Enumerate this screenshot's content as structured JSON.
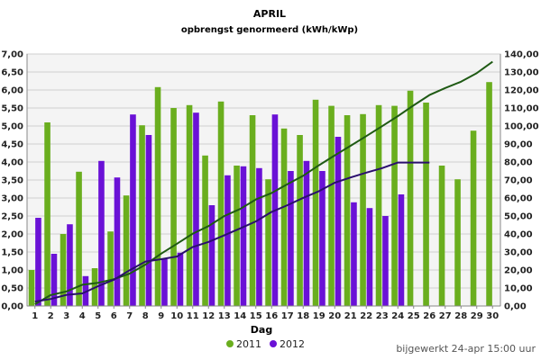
{
  "chart_data": {
    "type": "bar",
    "title": "APRIL",
    "subtitle": "opbrengst genormeerd (kWh/kWp)",
    "xlabel": "Dag",
    "ylabel": "",
    "ylim": [
      0,
      7
    ],
    "y2lim": [
      0,
      140
    ],
    "yticks": [
      "0,00",
      "0,50",
      "1,00",
      "1,50",
      "2,00",
      "2,50",
      "3,00",
      "3,50",
      "4,00",
      "4,50",
      "5,00",
      "5,50",
      "6,00",
      "6,50",
      "7,00"
    ],
    "y2ticks": [
      "0,00",
      "10,00",
      "20,00",
      "30,00",
      "40,00",
      "50,00",
      "60,00",
      "70,00",
      "80,00",
      "90,00",
      "100,00",
      "110,00",
      "120,00",
      "130,00",
      "140,00"
    ],
    "categories": [
      "1",
      "2",
      "3",
      "4",
      "5",
      "6",
      "7",
      "8",
      "9",
      "10",
      "11",
      "12",
      "13",
      "14",
      "15",
      "16",
      "17",
      "18",
      "19",
      "20",
      "21",
      "22",
      "23",
      "24",
      "25",
      "26",
      "27",
      "28",
      "29",
      "30"
    ],
    "series": [
      {
        "name": "2011",
        "type": "bar",
        "axis": "left",
        "color": "#6aae1e",
        "values": [
          1.0,
          5.1,
          2.0,
          3.73,
          1.05,
          2.07,
          3.07,
          5.02,
          6.08,
          5.5,
          5.58,
          4.18,
          5.68,
          3.9,
          5.3,
          3.52,
          4.93,
          4.75,
          5.73,
          5.56,
          5.3,
          5.33,
          5.58,
          5.56,
          5.98,
          5.65,
          3.9,
          3.52,
          4.87,
          6.22
        ]
      },
      {
        "name": "2012",
        "type": "bar",
        "axis": "left",
        "color": "#6a11d6",
        "values": [
          2.45,
          1.45,
          2.27,
          0.83,
          4.03,
          3.57,
          5.32,
          4.75,
          1.3,
          1.48,
          5.37,
          2.8,
          3.63,
          3.88,
          3.83,
          5.32,
          3.75,
          4.03,
          3.75,
          4.7,
          2.88,
          2.72,
          2.5,
          3.1,
          null,
          null,
          null,
          null,
          null,
          null
        ]
      },
      {
        "name": "2011",
        "type": "line",
        "axis": "right",
        "color": "#1f5a14",
        "values": [
          1.0,
          6.1,
          8.1,
          11.8,
          12.9,
          14.9,
          18.0,
          23.0,
          29.1,
          34.6,
          40.2,
          44.4,
          50.0,
          53.9,
          59.2,
          62.8,
          67.7,
          72.4,
          78.2,
          83.7,
          89.0,
          94.4,
          99.9,
          105.5,
          111.5,
          117.2,
          121.1,
          124.6,
          129.4,
          135.7
        ]
      },
      {
        "name": "2012",
        "type": "line",
        "axis": "right",
        "color": "#2a0f6e",
        "values": [
          2.45,
          3.9,
          6.2,
          7.0,
          11.0,
          14.6,
          19.9,
          24.7,
          26.0,
          27.5,
          32.8,
          35.6,
          39.3,
          43.1,
          47.0,
          52.3,
          56.0,
          60.1,
          63.8,
          68.5,
          71.4,
          74.1,
          76.6,
          79.7,
          79.7,
          79.7,
          null,
          null,
          null,
          null
        ]
      }
    ],
    "legend": [
      "2011",
      "2012"
    ],
    "legend_position": "bottom",
    "grid": true
  },
  "footer": {
    "updated": "bijgewerkt 24-apr 15:00 uur"
  }
}
